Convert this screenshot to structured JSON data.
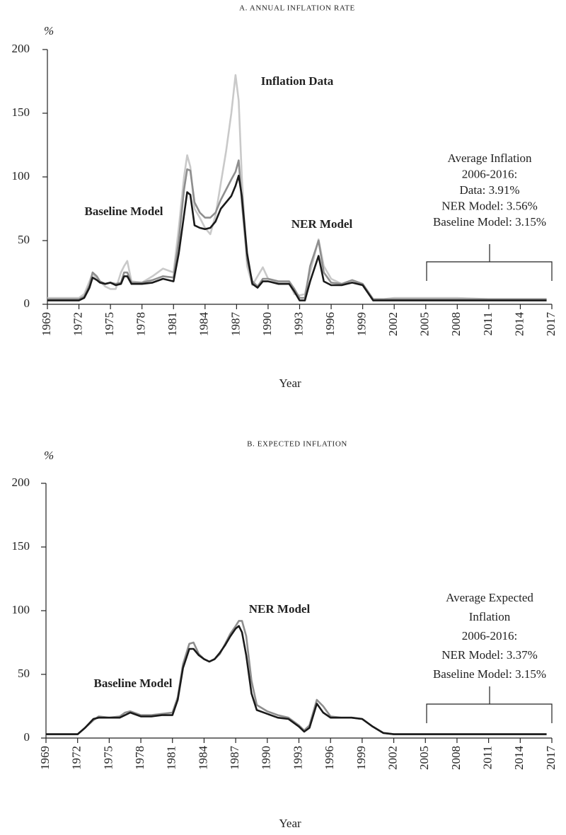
{
  "chart_data": [
    {
      "type": "line",
      "title": "A. ANNUAL INFLATION RATE",
      "y_unit": "%",
      "x_label": "Year",
      "xlim": [
        1969,
        2017
      ],
      "xticks": [
        1969,
        1972,
        1975,
        1978,
        1981,
        1984,
        1987,
        1990,
        1993,
        1996,
        1999,
        2002,
        2005,
        2008,
        2011,
        2014,
        2017
      ],
      "ylim": [
        0,
        200
      ],
      "yticks": [
        0,
        50,
        100,
        150,
        200
      ],
      "x": [
        1969,
        1971,
        1972,
        1972.5,
        1973,
        1973.3,
        1973.7,
        1974,
        1974.5,
        1975,
        1975.5,
        1976,
        1976.3,
        1976.6,
        1977,
        1978,
        1979,
        1980,
        1981,
        1981.5,
        1982,
        1982.3,
        1982.6,
        1983,
        1983.5,
        1984,
        1984.5,
        1985,
        1985.5,
        1986,
        1986.5,
        1986.9,
        1987.2,
        1987.5,
        1988,
        1988.5,
        1989,
        1989.5,
        1990,
        1991,
        1992,
        1992.5,
        1993,
        1993.5,
        1994,
        1994.8,
        1995.3,
        1996,
        1997,
        1998,
        1999,
        1999.5,
        2000,
        2002,
        2005,
        2008,
        2011,
        2014,
        2016.5
      ],
      "series": [
        {
          "name": "Inflation Data",
          "color": "#c9c9c9",
          "values": [
            5,
            5,
            5,
            8,
            18,
            24,
            20,
            18,
            14,
            12,
            12,
            25,
            30,
            34,
            18,
            17,
            22,
            28,
            25,
            60,
            100,
            117,
            108,
            75,
            68,
            60,
            55,
            70,
            95,
            120,
            150,
            180,
            160,
            100,
            30,
            15,
            22,
            29,
            20,
            17,
            17,
            8,
            7,
            8,
            25,
            51,
            30,
            20,
            16,
            17,
            16,
            10,
            3,
            5,
            5,
            5,
            4,
            4,
            4
          ]
        },
        {
          "name": "NER Model",
          "color": "#8e8e8e",
          "values": [
            4,
            4,
            4,
            6,
            15,
            25,
            22,
            18,
            16,
            17,
            16,
            17,
            25,
            25,
            17,
            17,
            19,
            22,
            21,
            50,
            90,
            106,
            105,
            80,
            72,
            68,
            68,
            72,
            82,
            90,
            98,
            104,
            113,
            80,
            35,
            18,
            14,
            20,
            20,
            18,
            18,
            12,
            5,
            5,
            30,
            50,
            25,
            17,
            16,
            19,
            16,
            10,
            4,
            4,
            4,
            4,
            4,
            4,
            4
          ]
        },
        {
          "name": "Baseline Model",
          "color": "#1a1a1a",
          "values": [
            3,
            3,
            3,
            5,
            13,
            21,
            19,
            17,
            16,
            17,
            15,
            16,
            22,
            22,
            16,
            16,
            17,
            20,
            18,
            40,
            70,
            88,
            86,
            62,
            60,
            59,
            60,
            65,
            75,
            80,
            85,
            93,
            101,
            85,
            40,
            16,
            13,
            18,
            18,
            16,
            16,
            10,
            3,
            3,
            18,
            38,
            18,
            15,
            15,
            17,
            15,
            9,
            3,
            3,
            3,
            3,
            3,
            3,
            3
          ]
        }
      ],
      "annotation": [
        "Average Inflation",
        "2006-2016:",
        "Data: 3.91%",
        "NER Model: 3.56%",
        "Baseline Model: 3.15%"
      ]
    },
    {
      "type": "line",
      "title": "B. EXPECTED INFLATION",
      "y_unit": "%",
      "x_label": "Year",
      "xlim": [
        1969,
        2017
      ],
      "xticks": [
        1969,
        1972,
        1975,
        1978,
        1981,
        1984,
        1987,
        1990,
        1993,
        1996,
        1999,
        2002,
        2005,
        2008,
        2011,
        2014,
        2017
      ],
      "ylim": [
        0,
        200
      ],
      "yticks": [
        0,
        50,
        100,
        150,
        200
      ],
      "x": [
        1969,
        1972,
        1972.7,
        1973.5,
        1974,
        1975,
        1976,
        1976.5,
        1977,
        1978,
        1979,
        1980,
        1981,
        1981.5,
        1982,
        1982.6,
        1983,
        1983.5,
        1984,
        1984.5,
        1985,
        1985.5,
        1986,
        1986.5,
        1987,
        1987.3,
        1987.6,
        1988,
        1988.5,
        1989,
        1990,
        1991,
        1992,
        1993,
        1993.5,
        1994,
        1994.7,
        1995.3,
        1996,
        1997,
        1998,
        1999,
        2000,
        2001,
        2002,
        2005,
        2008,
        2011,
        2014,
        2016.5
      ],
      "series": [
        {
          "name": "NER Model",
          "color": "#8e8e8e",
          "values": [
            3,
            3,
            8,
            14,
            17,
            16,
            17,
            20,
            21,
            18,
            18,
            19,
            20,
            32,
            58,
            74,
            75,
            66,
            62,
            60,
            62,
            66,
            74,
            82,
            88,
            92,
            92,
            80,
            45,
            26,
            21,
            18,
            16,
            10,
            6,
            10,
            30,
            25,
            17,
            16,
            16,
            15,
            9,
            4,
            3,
            3,
            3,
            3,
            3,
            3
          ]
        },
        {
          "name": "Baseline Model",
          "color": "#1a1a1a",
          "values": [
            3,
            3,
            8,
            15,
            16,
            16,
            16,
            18,
            20,
            17,
            17,
            18,
            18,
            30,
            55,
            70,
            70,
            65,
            62,
            60,
            62,
            67,
            73,
            80,
            86,
            88,
            83,
            65,
            35,
            22,
            19,
            16,
            15,
            9,
            5,
            8,
            27,
            20,
            16,
            16,
            16,
            15,
            9,
            4,
            3,
            3,
            3,
            3,
            3,
            3
          ]
        }
      ],
      "annotation": [
        "Average Expected",
        "Inflation",
        "2006-2016:",
        "NER Model: 3.37%",
        "Baseline Model: 3.15%"
      ]
    }
  ]
}
